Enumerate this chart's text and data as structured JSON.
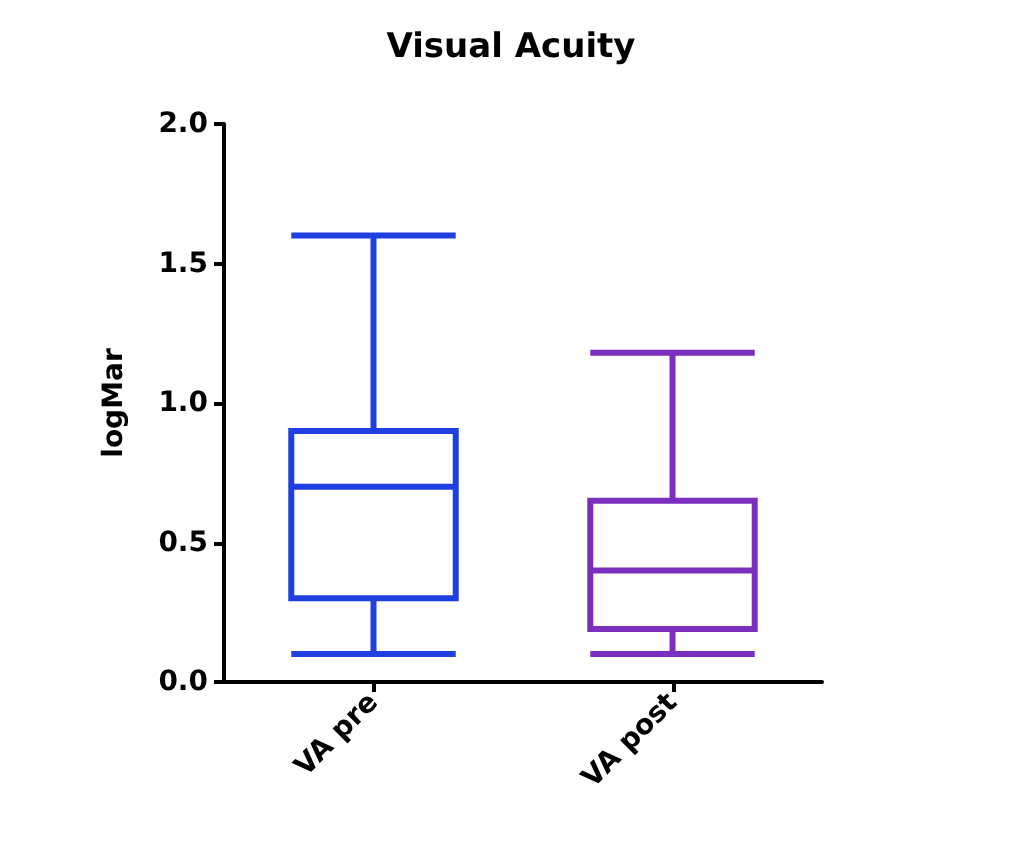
{
  "chart_data": {
    "type": "box",
    "title": "Visual Acuity",
    "ylabel": "logMar",
    "categories": [
      "VA pre",
      "VA post"
    ],
    "boxes": [
      {
        "low": 0.1,
        "q1": 0.3,
        "median": 0.7,
        "q3": 0.9,
        "high": 1.6
      },
      {
        "low": 0.1,
        "q1": 0.19,
        "median": 0.4,
        "q3": 0.65,
        "high": 1.18
      }
    ],
    "colors": [
      "#1f3fe0",
      "#7b2fbf"
    ],
    "ylim": [
      0,
      2
    ],
    "yticks": [
      {
        "value": 0,
        "label": "0.0"
      },
      {
        "value": 0.5,
        "label": "0.5"
      },
      {
        "value": 1,
        "label": "1.0"
      },
      {
        "value": 1.5,
        "label": "1.5"
      },
      {
        "value": 2,
        "label": "2.0"
      }
    ],
    "grid": false
  }
}
